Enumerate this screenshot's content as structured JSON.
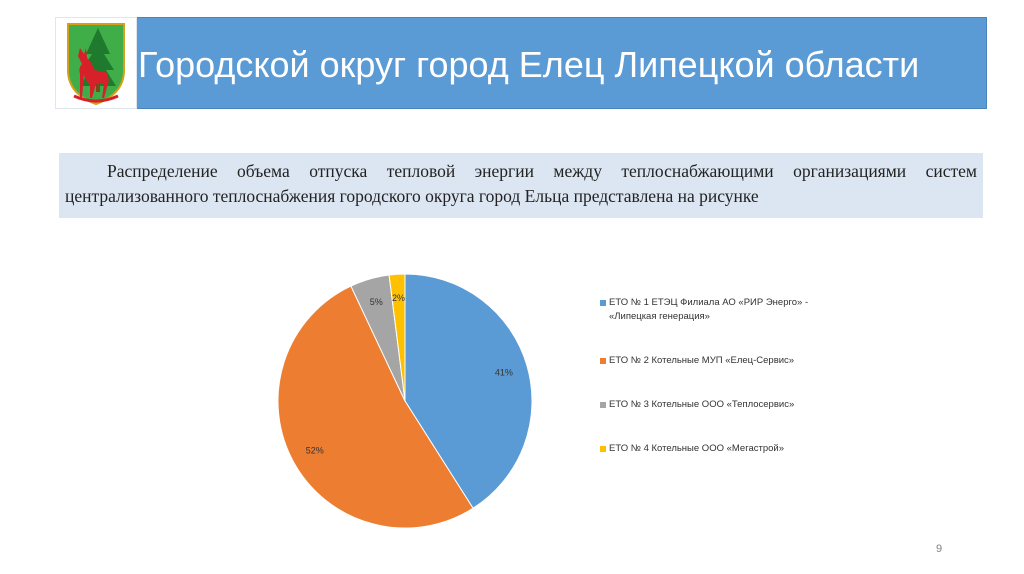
{
  "slide": {
    "title": "Городской округ город Елец Липецкой области",
    "description": "Распределение объема отпуска тепловой энергии между теплоснабжающими организациями систем централизованного теплоснабжения городского округа город Ельца представлена на рисунке",
    "page_number": "9"
  },
  "colors": {
    "title_bar": "#5a9ad5",
    "description_bg": "#dce6f2",
    "series": [
      "#5b9bd5",
      "#ed7d31",
      "#a5a5a5",
      "#ffc000"
    ]
  },
  "icons": {
    "crest": "yelets-coat-of-arms-icon"
  },
  "chart_data": {
    "type": "pie",
    "title": "",
    "start_angle_deg": 0,
    "direction": "clockwise",
    "legend_position": "right",
    "categories": [
      "ЕТО № 1 ЕТЭЦ Филиала АО «РИР Энерго» - «Липецкая генерация»",
      "ЕТО № 2 Котельные МУП «Елец-Сервис»",
      "ЕТО № 3 Котельные ООО «Теплосервис»",
      "ЕТО № 4 Котельные ООО «Мегастрой»"
    ],
    "values": [
      41,
      52,
      5,
      2
    ],
    "labels": [
      "41%",
      "52%",
      "5%",
      "2%"
    ]
  }
}
